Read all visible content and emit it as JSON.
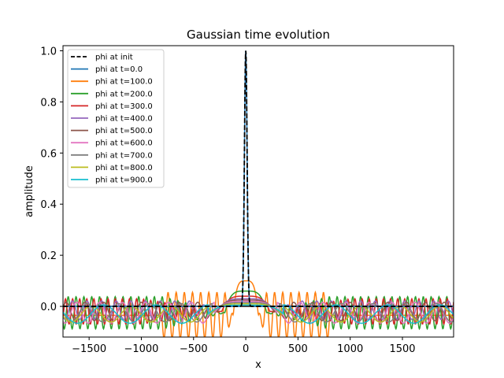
{
  "chart_data": {
    "type": "line",
    "title": "Gaussian time evolution",
    "xlabel": "x",
    "ylabel": "amplitude",
    "xlim": [
      -1750,
      1990
    ],
    "ylim": [
      -0.12,
      1.02
    ],
    "xticks": [
      -1500,
      -1000,
      -500,
      0,
      500,
      1000,
      1500
    ],
    "xtick_labels": [
      "−1500",
      "−1000",
      "−500",
      "0",
      "500",
      "1000",
      "1500"
    ],
    "yticks": [
      0.0,
      0.2,
      0.4,
      0.6,
      0.8,
      1.0
    ],
    "ytick_labels": [
      "0.0",
      "0.2",
      "0.4",
      "0.6",
      "0.8",
      "1.0"
    ],
    "legend_position": "top-left",
    "baseline": 0.0,
    "series": [
      {
        "name": "phi at init",
        "color": "#000000",
        "dashed": true,
        "kind": "gaussian",
        "center": 0,
        "width": 18,
        "peak": 1.0
      },
      {
        "name": "phi at t=0.0",
        "color": "#1f77b4",
        "kind": "gaussian",
        "center": 0,
        "width": 18,
        "peak": 1.0
      },
      {
        "name": "phi at t=100.0",
        "color": "#ff7f0e",
        "kind": "oscillation",
        "plateau": 0.1,
        "plateau_halfwidth": 120,
        "base": -0.035,
        "amplitude": 0.1,
        "wavelength": 78,
        "envelope_start": 200,
        "envelope_end": 800
      },
      {
        "name": "phi at t=200.0",
        "color": "#2ca02c",
        "kind": "oscillation",
        "plateau": 0.06,
        "plateau_halfwidth": 200,
        "base": -0.025,
        "amplitude": 0.07,
        "wavelength": 75,
        "envelope_start": 800,
        "envelope_end": 1990
      },
      {
        "name": "phi at t=300.0",
        "color": "#d62728",
        "kind": "oscillation",
        "plateau": 0.04,
        "plateau_halfwidth": 230,
        "base": -0.02,
        "amplitude": 0.055,
        "wavelength": 68,
        "envelope_start": 1000,
        "envelope_end": 1990
      },
      {
        "name": "phi at t=400.0",
        "color": "#9467bd",
        "kind": "oscillation",
        "plateau": 0.03,
        "plateau_halfwidth": 260,
        "base": -0.015,
        "amplitude": 0.04,
        "wavelength": 140,
        "envelope_start": 500,
        "envelope_end": 1990
      },
      {
        "name": "phi at t=500.0",
        "color": "#8c564b",
        "kind": "oscillation",
        "plateau": 0.025,
        "plateau_halfwidth": 280,
        "base": -0.02,
        "amplitude": 0.04,
        "wavelength": 180,
        "envelope_start": 400,
        "envelope_end": 1990
      },
      {
        "name": "phi at t=600.0",
        "color": "#e377c2",
        "kind": "oscillation",
        "plateau": 0.02,
        "plateau_halfwidth": 300,
        "base": -0.025,
        "amplitude": 0.045,
        "wavelength": 220,
        "envelope_start": 300,
        "envelope_end": 1990
      },
      {
        "name": "phi at t=700.0",
        "color": "#7f7f7f",
        "kind": "oscillation",
        "plateau": 0.015,
        "plateau_halfwidth": 320,
        "base": -0.025,
        "amplitude": 0.04,
        "wavelength": 300,
        "envelope_start": 200,
        "envelope_end": 1990
      },
      {
        "name": "phi at t=800.0",
        "color": "#bcbd22",
        "kind": "oscillation",
        "plateau": 0.01,
        "plateau_halfwidth": 340,
        "base": -0.03,
        "amplitude": 0.035,
        "wavelength": 380,
        "envelope_start": 200,
        "envelope_end": 1990
      },
      {
        "name": "phi at t=900.0",
        "color": "#17becf",
        "kind": "oscillation",
        "plateau": 0.005,
        "plateau_halfwidth": 360,
        "base": -0.03,
        "amplitude": 0.04,
        "wavelength": 500,
        "envelope_start": 200,
        "envelope_end": 1990
      }
    ]
  }
}
